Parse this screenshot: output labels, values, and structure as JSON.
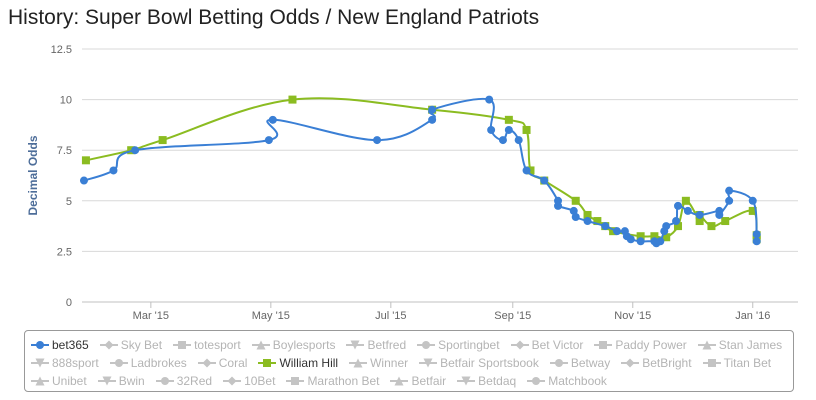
{
  "title": "History: Super Bowl Betting Odds / New England Patriots",
  "chart_data": {
    "type": "line",
    "title": "History: Super Bowl Betting Odds / New England Patriots",
    "ylabel": "Decimal Odds",
    "xlabel": "",
    "ylim": [
      0,
      12.5
    ],
    "yticks": [
      "0",
      "2.5",
      "5",
      "7.5",
      "10",
      "12.5"
    ],
    "xticks": [
      "Mar '15",
      "May '15",
      "Jul '15",
      "Sep '15",
      "Nov '15",
      "Jan '16"
    ],
    "xlim": [
      "2015-02-08",
      "2016-02-07"
    ],
    "grid": true,
    "legend_position": "bottom",
    "series": [
      {
        "name": "bet365",
        "color": "#3a7fd5",
        "marker": "circle",
        "points": [
          [
            "2015-02-09",
            6.0
          ],
          [
            "2015-02-24",
            6.5
          ],
          [
            "2015-03-07",
            7.5
          ],
          [
            "2015-05-14",
            8.0
          ],
          [
            "2015-05-16",
            9.0
          ],
          [
            "2015-07-08",
            8.0
          ],
          [
            "2015-08-05",
            9.0
          ],
          [
            "2015-08-05",
            9.5
          ],
          [
            "2015-09-03",
            10.0
          ],
          [
            "2015-09-04",
            8.5
          ],
          [
            "2015-09-10",
            8.0
          ],
          [
            "2015-09-13",
            8.5
          ],
          [
            "2015-09-18",
            8.0
          ],
          [
            "2015-09-22",
            6.5
          ],
          [
            "2015-10-01",
            6.0
          ],
          [
            "2015-10-08",
            5.0
          ],
          [
            "2015-10-08",
            4.75
          ],
          [
            "2015-10-16",
            4.5
          ],
          [
            "2015-10-17",
            4.2
          ],
          [
            "2015-10-23",
            4.0
          ],
          [
            "2015-11-01",
            3.75
          ],
          [
            "2015-11-07",
            3.5
          ],
          [
            "2015-11-11",
            3.5
          ],
          [
            "2015-11-12",
            3.25
          ],
          [
            "2015-11-14",
            3.1
          ],
          [
            "2015-11-19",
            3.0
          ],
          [
            "2015-11-26",
            3.0
          ],
          [
            "2015-11-27",
            2.9
          ],
          [
            "2015-11-29",
            3.0
          ],
          [
            "2015-12-01",
            3.5
          ],
          [
            "2015-12-02",
            3.75
          ],
          [
            "2015-12-07",
            4.0
          ],
          [
            "2015-12-08",
            4.75
          ],
          [
            "2015-12-13",
            4.5
          ],
          [
            "2015-12-19",
            4.3
          ],
          [
            "2015-12-29",
            4.5
          ],
          [
            "2015-12-29",
            4.3
          ],
          [
            "2016-01-03",
            5.0
          ],
          [
            "2016-01-03",
            5.5
          ],
          [
            "2016-01-15",
            5.0
          ],
          [
            "2016-01-17",
            3.35
          ],
          [
            "2016-01-17",
            3.0
          ]
        ]
      },
      {
        "name": "William Hill",
        "color": "#8bbc21",
        "marker": "square",
        "points": [
          [
            "2015-02-10",
            7.0
          ],
          [
            "2015-03-05",
            7.5
          ],
          [
            "2015-03-21",
            8.0
          ],
          [
            "2015-05-26",
            10.0
          ],
          [
            "2015-08-05",
            9.5
          ],
          [
            "2015-09-13",
            9.0
          ],
          [
            "2015-09-22",
            8.5
          ],
          [
            "2015-09-24",
            6.5
          ],
          [
            "2015-10-01",
            6.0
          ],
          [
            "2015-10-17",
            5.0
          ],
          [
            "2015-10-23",
            4.3
          ],
          [
            "2015-10-28",
            4.0
          ],
          [
            "2015-11-01",
            3.75
          ],
          [
            "2015-11-05",
            3.5
          ],
          [
            "2015-11-19",
            3.25
          ],
          [
            "2015-11-26",
            3.25
          ],
          [
            "2015-12-02",
            3.2
          ],
          [
            "2015-12-08",
            3.75
          ],
          [
            "2015-12-12",
            5.0
          ],
          [
            "2015-12-19",
            4.0
          ],
          [
            "2015-12-19",
            4.3
          ],
          [
            "2015-12-25",
            3.75
          ],
          [
            "2016-01-01",
            4.0
          ],
          [
            "2016-01-15",
            4.5
          ],
          [
            "2016-01-17",
            3.3
          ],
          [
            "2016-01-17",
            3.1
          ]
        ]
      }
    ]
  },
  "legend": {
    "rows": [
      [
        {
          "name": "bet365",
          "symbol": "circle",
          "active": true,
          "color": "#3a7fd5"
        },
        {
          "name": "Sky Bet",
          "symbol": "diamond",
          "active": false
        },
        {
          "name": "totesport",
          "symbol": "square",
          "active": false
        },
        {
          "name": "Boylesports",
          "symbol": "triangle",
          "active": false
        },
        {
          "name": "Betfred",
          "symbol": "triangle-down",
          "active": false
        },
        {
          "name": "Sportingbet",
          "symbol": "circle",
          "active": false
        },
        {
          "name": "Bet Victor",
          "symbol": "diamond",
          "active": false
        },
        {
          "name": "Paddy Power",
          "symbol": "square",
          "active": false
        },
        {
          "name": "Stan James",
          "symbol": "triangle",
          "active": false
        }
      ],
      [
        {
          "name": "888sport",
          "symbol": "triangle-down",
          "active": false
        },
        {
          "name": "Ladbrokes",
          "symbol": "circle",
          "active": false
        },
        {
          "name": "Coral",
          "symbol": "diamond",
          "active": false
        },
        {
          "name": "William Hill",
          "symbol": "square",
          "active": true,
          "color": "#8bbc21"
        },
        {
          "name": "Winner",
          "symbol": "triangle",
          "active": false
        },
        {
          "name": "Betfair Sportsbook",
          "symbol": "triangle-down",
          "active": false
        },
        {
          "name": "Betway",
          "symbol": "circle",
          "active": false
        },
        {
          "name": "BetBright",
          "symbol": "diamond",
          "active": false
        },
        {
          "name": "Titan Bet",
          "symbol": "square",
          "active": false
        }
      ],
      [
        {
          "name": "Unibet",
          "symbol": "triangle",
          "active": false
        },
        {
          "name": "Bwin",
          "symbol": "triangle-down",
          "active": false
        },
        {
          "name": "32Red",
          "symbol": "circle",
          "active": false
        },
        {
          "name": "10Bet",
          "symbol": "diamond",
          "active": false
        },
        {
          "name": "Marathon Bet",
          "symbol": "square",
          "active": false
        },
        {
          "name": "Betfair",
          "symbol": "triangle",
          "active": false
        },
        {
          "name": "Betdaq",
          "symbol": "triangle-down",
          "active": false
        },
        {
          "name": "Matchbook",
          "symbol": "circle",
          "active": false
        }
      ]
    ]
  }
}
